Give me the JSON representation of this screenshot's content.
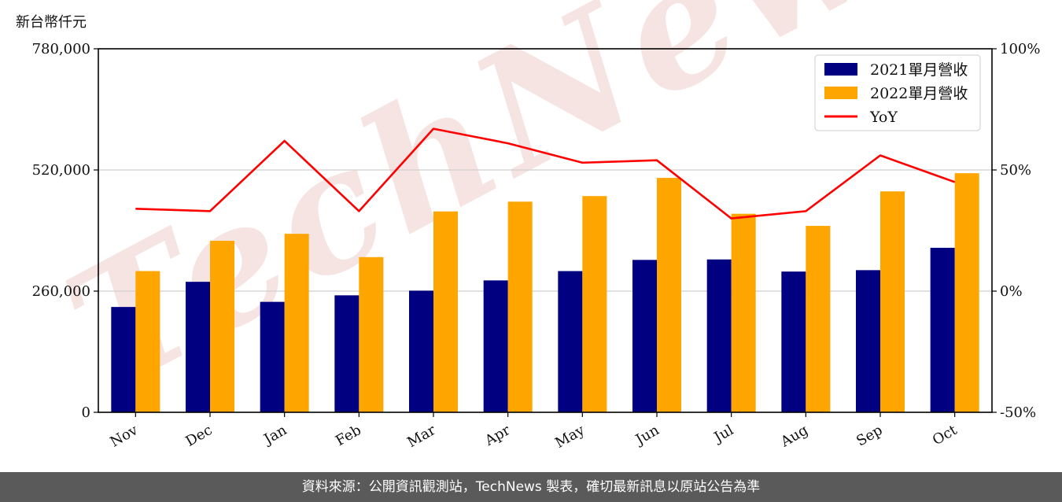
{
  "chart_data": {
    "type": "bar",
    "unit_label": "新台幣仟元",
    "categories": [
      "Nov",
      "Dec",
      "Jan",
      "Feb",
      "Mar",
      "Apr",
      "May",
      "Jun",
      "Jul",
      "Aug",
      "Sep",
      "Oct"
    ],
    "series": [
      {
        "name": "2021單月營收",
        "type": "bar",
        "axis": "left",
        "color": "#000080",
        "values": [
          226000,
          280000,
          237000,
          251000,
          261000,
          283000,
          303000,
          327000,
          328000,
          302000,
          305000,
          353000
        ]
      },
      {
        "name": "2022單月營收",
        "type": "bar",
        "axis": "left",
        "color": "#FFA500",
        "values": [
          303000,
          368000,
          383000,
          333000,
          431000,
          452000,
          464000,
          503000,
          426000,
          400000,
          474000,
          513000
        ]
      },
      {
        "name": "YoY",
        "type": "line",
        "axis": "right",
        "color": "#FF0000",
        "values": [
          34,
          33,
          62,
          33,
          67,
          61,
          53,
          54,
          30,
          33,
          56,
          45
        ]
      }
    ],
    "left_axis": {
      "ylim": [
        0,
        780000
      ],
      "ticks": [
        0,
        260000,
        520000,
        780000
      ],
      "tick_labels": [
        "0",
        "260,000",
        "520,000",
        "780,000"
      ]
    },
    "right_axis": {
      "ylim": [
        -50,
        100
      ],
      "ticks": [
        -50,
        0,
        50,
        100
      ],
      "tick_labels": [
        "-50%",
        "0%",
        "50%",
        "100%"
      ]
    },
    "grid": "horizontal",
    "legend_position": "top-right",
    "watermark": "TechNews"
  },
  "footer": {
    "text": "資料來源：公開資訊觀測站，TechNews 製表，確切最新訊息以原站公告為準"
  }
}
